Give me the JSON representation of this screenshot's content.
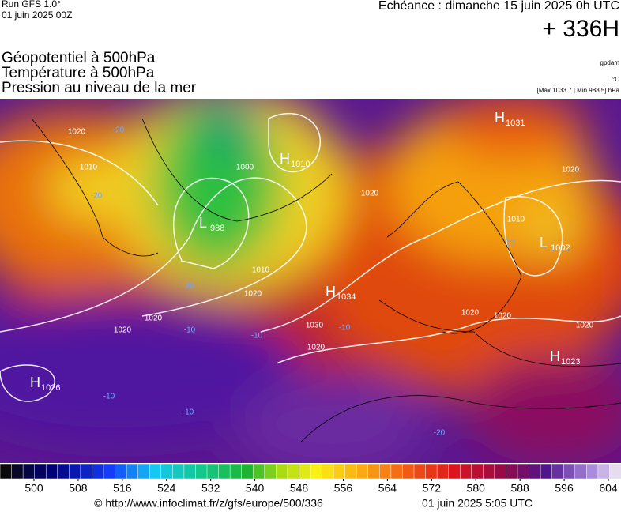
{
  "header": {
    "run": "Run GFS 1.0°",
    "run_date": "01 juin 2025 00Z",
    "echeance": "Echéance : dimanche 15 juin 2025 0h UTC",
    "lead": "+ 336H"
  },
  "layers": [
    "Géopotentiel à 500hPa",
    "Température à 500hPa",
    "Pression au niveau de la mer"
  ],
  "units": {
    "geopotential": "gpdam",
    "temperature": "°C",
    "pressure": "[Max 1033.7 | Min 988.5] hPa"
  },
  "centers": [
    {
      "letter": "H",
      "value": "1026"
    },
    {
      "letter": "H",
      "value": "1034"
    },
    {
      "letter": "H",
      "value": "1023"
    },
    {
      "letter": "L",
      "value": "1002"
    },
    {
      "letter": "H",
      "value": "1031"
    },
    {
      "letter": "L",
      "value": "988"
    },
    {
      "letter": "H",
      "value": "1010"
    }
  ],
  "isobar_labels": [
    "1020",
    "1010",
    "1000",
    "1010",
    "1020",
    "1030",
    "1020",
    "1020",
    "1020",
    "1020",
    "1010",
    "1020",
    "1020",
    "1020",
    "1020"
  ],
  "temperature_labels": [
    "-20",
    "-20",
    "-20",
    "-10",
    "-10",
    "-10",
    "-10",
    "-10",
    "-20",
    "-20"
  ],
  "colorbar": {
    "ticks": [
      500,
      508,
      516,
      524,
      532,
      540,
      548,
      556,
      564,
      572,
      580,
      588,
      596,
      604
    ]
  },
  "footer": {
    "source": "© http://www.infoclimat.fr/z/gfs/europe/500/336",
    "issued": "01 juin 2025  5:05 UTC"
  }
}
